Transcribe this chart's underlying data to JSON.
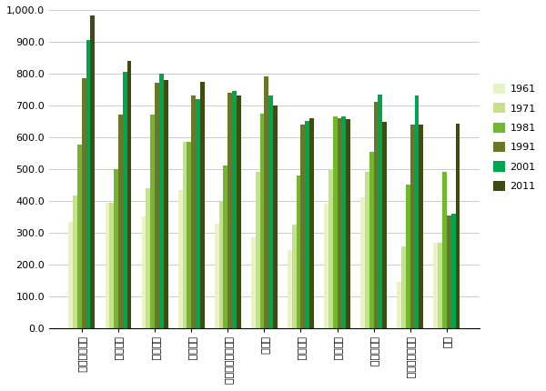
{
  "categories": [
    "アイルランド",
    "ベルギー",
    "オランダ",
    "イギリス",
    "ニュージーランド",
    "ドイツ",
    "エジプト",
    "フランス",
    "デンマーク",
    "サウジアラビア",
    "日本"
  ],
  "years": [
    "1961",
    "1971",
    "1981",
    "1991",
    "2001",
    "2011"
  ],
  "colors": [
    "#e8f4c8",
    "#c8e08c",
    "#70b830",
    "#6b7728",
    "#00a550",
    "#3d4c10"
  ],
  "values": {
    "アイルランド": [
      335,
      418,
      578,
      785,
      905,
      982
    ],
    "ベルギー": [
      395,
      395,
      500,
      670,
      805,
      840
    ],
    "オランダ": [
      350,
      440,
      670,
      770,
      800,
      780
    ],
    "イギリス": [
      435,
      585,
      585,
      730,
      720,
      775
    ],
    "ニュージーランド": [
      330,
      400,
      510,
      740,
      745,
      730
    ],
    "ドイツ": [
      287,
      490,
      675,
      790,
      730,
      700
    ],
    "エジプト": [
      245,
      325,
      480,
      640,
      650,
      660
    ],
    "フランス": [
      390,
      500,
      665,
      660,
      665,
      658
    ],
    "デンマーク": [
      410,
      490,
      555,
      710,
      735,
      648
    ],
    "サウジアラビア": [
      147,
      258,
      452,
      640,
      730,
      640
    ],
    "日本": [
      270,
      270,
      490,
      355,
      360,
      643
    ]
  },
  "ylim": [
    0,
    1000
  ],
  "yticks": [
    0,
    100,
    200,
    300,
    400,
    500,
    600,
    700,
    800,
    900,
    1000
  ],
  "ytick_labels": [
    "0.0",
    "100.0",
    "200.0",
    "300.0",
    "400.0",
    "500.0",
    "600.0",
    "700.0",
    "800.0",
    "900.0",
    "1,000.0"
  ],
  "legend_labels": [
    "1961",
    "1971",
    "1981",
    "1991",
    "2001",
    "2011"
  ],
  "bar_width": 0.12,
  "figsize": [
    6.0,
    4.3
  ],
  "dpi": 100
}
